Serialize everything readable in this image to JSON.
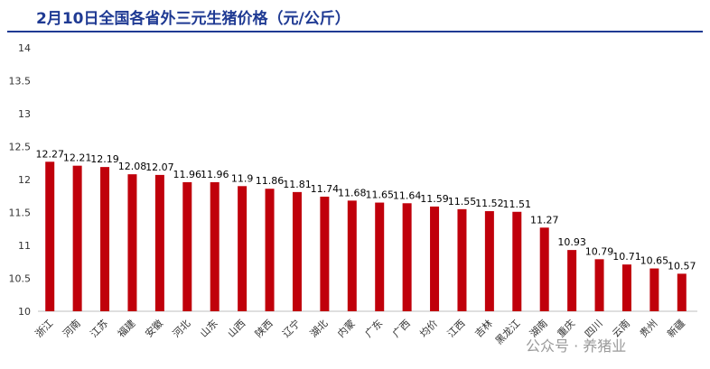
{
  "header": {
    "title": "2月10日全国各省外三元生猪价格（元/公斤）"
  },
  "watermark": {
    "text": "公众号 · 养猪业"
  },
  "chart_data": {
    "type": "bar",
    "title": "2月10日全国各省外三元生猪价格（元/公斤）",
    "xlabel": "",
    "ylabel": "",
    "ylim": [
      10,
      14
    ],
    "yticks": [
      "10",
      "10.5",
      "11",
      "11.5",
      "12",
      "12.5",
      "13",
      "13.5",
      "14"
    ],
    "grid": false,
    "legend": "none",
    "bar_color": "#c0000b",
    "categories": [
      "浙江",
      "河南",
      "江苏",
      "福建",
      "安徽",
      "河北",
      "山东",
      "山西",
      "陕西",
      "辽宁",
      "湖北",
      "内蒙",
      "广东",
      "广西",
      "均价",
      "江西",
      "吉林",
      "黑龙江",
      "湖南",
      "重庆",
      "四川",
      "云南",
      "贵州",
      "新疆"
    ],
    "values": [
      12.27,
      12.21,
      12.19,
      12.08,
      12.07,
      11.96,
      11.96,
      11.9,
      11.86,
      11.81,
      11.74,
      11.68,
      11.65,
      11.64,
      11.59,
      11.55,
      11.52,
      11.51,
      11.27,
      10.93,
      10.79,
      10.71,
      10.65,
      10.57
    ],
    "value_labels": [
      "12.27",
      "12.21",
      "12.19",
      "12.08",
      "12.07",
      "11.96",
      "11.96",
      "11.9",
      "11.86",
      "11.81",
      "11.74",
      "11.68",
      "11.65",
      "11.64",
      "11.59",
      "11.55",
      "11.52",
      "11.51",
      "11.27",
      "10.93",
      "10.79",
      "10.71",
      "10.65",
      "10.57"
    ]
  }
}
